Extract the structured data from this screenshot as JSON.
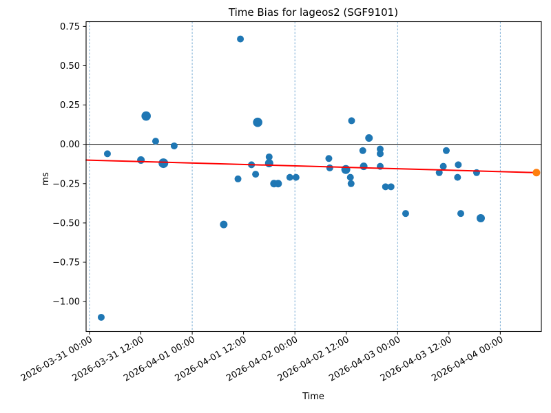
{
  "chart_data": {
    "type": "scatter",
    "title": "Time Bias for lageos2 (SGF9101)",
    "xlabel": "Time",
    "ylabel": "ms",
    "legend": "none",
    "grid": "vertical-dashed-at-midnight",
    "ylim": [
      -1.19,
      0.78
    ],
    "xlim_hours": [
      -0.8,
      105.6
    ],
    "x_origin": "2026-03-31 00:00",
    "zero_line_ms": 0,
    "y_ticks": [
      {
        "label": "0.75",
        "value": 0.75
      },
      {
        "label": "0.50",
        "value": 0.5
      },
      {
        "label": "0.25",
        "value": 0.25
      },
      {
        "label": "0.00",
        "value": 0.0
      },
      {
        "label": "−0.25",
        "value": -0.25
      },
      {
        "label": "−0.50",
        "value": -0.5
      },
      {
        "label": "−0.75",
        "value": -0.75
      },
      {
        "label": "−1.00",
        "value": -1.0
      }
    ],
    "x_tick_labels": [
      "2026-03-31 00:00",
      "2026-03-31 12:00",
      "2026-04-01 00:00",
      "2026-04-01 12:00",
      "2026-04-02 00:00",
      "2026-04-02 12:00",
      "2026-04-03 00:00",
      "2026-04-03 12:00",
      "2026-04-04 00:00"
    ],
    "x_gridlines": [
      "2026-03-31 00:00",
      "2026-04-01 00:00",
      "2026-04-02 00:00",
      "2026-04-03 00:00",
      "2026-04-04 00:00"
    ],
    "colors": {
      "points": "#1f77b4",
      "trend": "#ff0000",
      "latest": "#ff7f0e",
      "grid": "#6ba3cf"
    },
    "series": [
      {
        "name": "time-bias-measurements",
        "type": "scatter",
        "color": "#1f77b4",
        "points": [
          {
            "time": "2026-03-31 02:44",
            "ms": -1.1,
            "size": 5
          },
          {
            "time": "2026-03-31 04:11",
            "ms": -0.06,
            "size": 5
          },
          {
            "time": "2026-03-31 12:01",
            "ms": -0.1,
            "size": 5.5
          },
          {
            "time": "2026-03-31 13:14",
            "ms": 0.18,
            "size": 6.8
          },
          {
            "time": "2026-03-31 15:27",
            "ms": 0.02,
            "size": 5
          },
          {
            "time": "2026-03-31 17:16",
            "ms": -0.12,
            "size": 7
          },
          {
            "time": "2026-03-31 19:47",
            "ms": -0.01,
            "size": 5
          },
          {
            "time": "2026-04-01 07:22",
            "ms": -0.51,
            "size": 5.5
          },
          {
            "time": "2026-04-01 10:42",
            "ms": -0.22,
            "size": 5
          },
          {
            "time": "2026-04-01 11:16",
            "ms": 0.67,
            "size": 5
          },
          {
            "time": "2026-04-01 13:51",
            "ms": -0.13,
            "size": 5
          },
          {
            "time": "2026-04-01 14:49",
            "ms": -0.19,
            "size": 5
          },
          {
            "time": "2026-04-01 15:18",
            "ms": 0.14,
            "size": 6.8
          },
          {
            "time": "2026-04-01 17:59",
            "ms": -0.08,
            "size": 5
          },
          {
            "time": "2026-04-01 17:59",
            "ms": -0.12,
            "size": 6
          },
          {
            "time": "2026-04-01 19:07",
            "ms": -0.25,
            "size": 5.5
          },
          {
            "time": "2026-04-01 20:05",
            "ms": -0.25,
            "size": 5.5
          },
          {
            "time": "2026-04-01 22:49",
            "ms": -0.21,
            "size": 5
          },
          {
            "time": "2026-04-02 00:16",
            "ms": -0.21,
            "size": 5
          },
          {
            "time": "2026-04-02 07:56",
            "ms": -0.09,
            "size": 5
          },
          {
            "time": "2026-04-02 08:09",
            "ms": -0.15,
            "size": 5
          },
          {
            "time": "2026-04-02 11:54",
            "ms": -0.16,
            "size": 6.5
          },
          {
            "time": "2026-04-02 12:58",
            "ms": -0.21,
            "size": 5
          },
          {
            "time": "2026-04-02 13:08",
            "ms": -0.25,
            "size": 5
          },
          {
            "time": "2026-04-02 13:15",
            "ms": 0.15,
            "size": 5
          },
          {
            "time": "2026-04-02 15:52",
            "ms": -0.04,
            "size": 5
          },
          {
            "time": "2026-04-02 16:05",
            "ms": -0.14,
            "size": 5.5
          },
          {
            "time": "2026-04-02 17:19",
            "ms": 0.04,
            "size": 5.5
          },
          {
            "time": "2026-04-02 19:56",
            "ms": -0.03,
            "size": 5
          },
          {
            "time": "2026-04-02 19:56",
            "ms": -0.06,
            "size": 5
          },
          {
            "time": "2026-04-02 19:56",
            "ms": -0.14,
            "size": 5
          },
          {
            "time": "2026-04-02 21:11",
            "ms": -0.27,
            "size": 5
          },
          {
            "time": "2026-04-02 22:28",
            "ms": -0.27,
            "size": 5
          },
          {
            "time": "2026-04-03 01:53",
            "ms": -0.44,
            "size": 5
          },
          {
            "time": "2026-04-03 09:44",
            "ms": -0.18,
            "size": 5
          },
          {
            "time": "2026-04-03 10:41",
            "ms": -0.14,
            "size": 5
          },
          {
            "time": "2026-04-03 11:23",
            "ms": -0.04,
            "size": 5
          },
          {
            "time": "2026-04-03 14:11",
            "ms": -0.13,
            "size": 5
          },
          {
            "time": "2026-04-03 14:01",
            "ms": -0.21,
            "size": 5
          },
          {
            "time": "2026-04-03 14:46",
            "ms": -0.44,
            "size": 5
          },
          {
            "time": "2026-04-03 18:28",
            "ms": -0.18,
            "size": 5
          },
          {
            "time": "2026-04-03 19:26",
            "ms": -0.47,
            "size": 6
          }
        ]
      },
      {
        "name": "trend-line",
        "type": "line",
        "color": "#ff0000",
        "points": [
          {
            "time": "2026-03-30 23:12",
            "ms": -0.1
          },
          {
            "time": "2026-04-04 08:27",
            "ms": -0.18
          }
        ]
      },
      {
        "name": "trend-endpoint",
        "type": "scatter",
        "color": "#ff7f0e",
        "points": [
          {
            "time": "2026-04-04 08:27",
            "ms": -0.18,
            "size": 5.5
          }
        ]
      }
    ]
  }
}
